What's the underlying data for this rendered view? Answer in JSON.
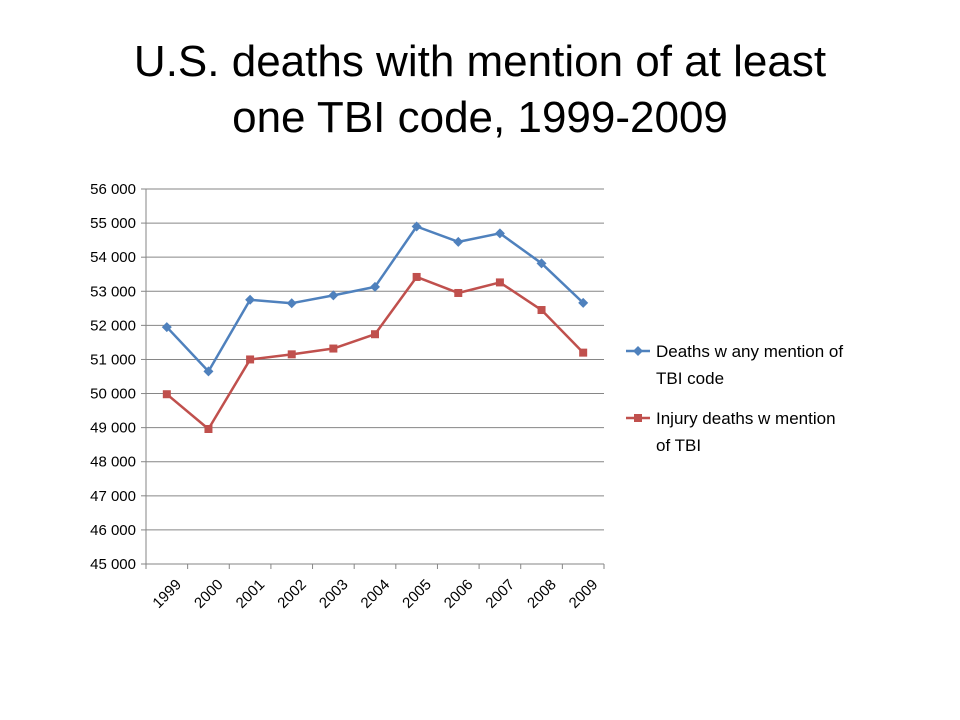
{
  "title_lines": [
    "U.S. deaths with mention of at least",
    "one TBI code, 1999-2009"
  ],
  "chart_data": {
    "type": "line",
    "title": "U.S. deaths with mention of at least one TBI code, 1999-2009",
    "xlabel": "",
    "ylabel": "",
    "categories": [
      "1999",
      "2000",
      "2001",
      "2002",
      "2003",
      "2004",
      "2005",
      "2006",
      "2007",
      "2008",
      "2009"
    ],
    "ylim": [
      45000,
      56000
    ],
    "yticks": [
      45000,
      46000,
      47000,
      48000,
      49000,
      50000,
      51000,
      52000,
      53000,
      54000,
      55000,
      56000
    ],
    "ytick_labels": [
      "45 000",
      "46 000",
      "47 000",
      "48 000",
      "49 000",
      "50 000",
      "51 000",
      "52 000",
      "53 000",
      "54 000",
      "55 000",
      "56 000"
    ],
    "grid": true,
    "legend_position": "right",
    "series": [
      {
        "name": "Deaths w any mention of TBI code",
        "legend_lines": [
          "Deaths w any mention of",
          "TBI code"
        ],
        "color": "#4F81BD",
        "marker": "diamond",
        "values": [
          51950,
          50650,
          52750,
          52650,
          52880,
          53130,
          54900,
          54450,
          54700,
          53820,
          52660
        ]
      },
      {
        "name": "Injury deaths w mention of TBI",
        "legend_lines": [
          "Injury deaths w mention",
          "of TBI"
        ],
        "color": "#C0504D",
        "marker": "square",
        "values": [
          49980,
          48960,
          51000,
          51150,
          51320,
          51740,
          53420,
          52950,
          53260,
          52450,
          51200
        ]
      }
    ]
  }
}
